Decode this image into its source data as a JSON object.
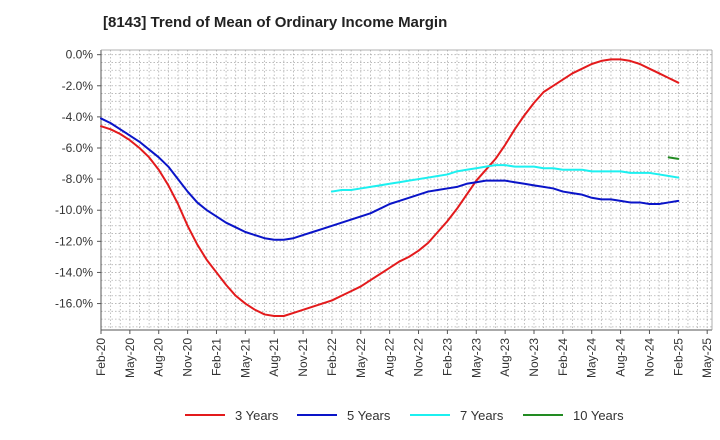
{
  "title": "[8143]  Trend of Mean of Ordinary Income Margin",
  "chart_data": {
    "type": "line",
    "title": "[8143]  Trend of Mean of Ordinary Income Margin",
    "xlabel": "",
    "ylabel": "",
    "ylim": [
      -17.7,
      0.3
    ],
    "y_ticks": [
      0,
      -2,
      -4,
      -6,
      -8,
      -10,
      -12,
      -14,
      -16
    ],
    "y_tick_labels": [
      "0.0%",
      "-2.0%",
      "-4.0%",
      "-6.0%",
      "-8.0%",
      "-10.0%",
      "-12.0%",
      "-14.0%",
      "-16.0%"
    ],
    "x_ticks": [
      "2020-02",
      "2020-05",
      "2020-08",
      "2020-11",
      "2021-02",
      "2021-05",
      "2021-08",
      "2021-11",
      "2022-02",
      "2022-05",
      "2022-08",
      "2022-11",
      "2023-02",
      "2023-05",
      "2023-08",
      "2023-11",
      "2024-02",
      "2024-05",
      "2024-08",
      "2024-11",
      "2025-02",
      "2025-05"
    ],
    "x_tick_labels": [
      "Feb-20",
      "May-20",
      "Aug-20",
      "Nov-20",
      "Feb-21",
      "May-21",
      "Aug-21",
      "Nov-21",
      "Feb-22",
      "May-22",
      "Aug-22",
      "Nov-22",
      "Feb-23",
      "May-23",
      "Aug-23",
      "Nov-23",
      "Feb-24",
      "May-24",
      "Aug-24",
      "Nov-24",
      "Feb-25",
      "May-25"
    ],
    "grid": true,
    "legend_position": "bottom",
    "series": [
      {
        "name": "3 Years",
        "color": "#e31a1c",
        "points": [
          [
            "2020-02",
            -4.6
          ],
          [
            "2020-03",
            -4.8
          ],
          [
            "2020-04",
            -5.1
          ],
          [
            "2020-05",
            -5.5
          ],
          [
            "2020-06",
            -6.0
          ],
          [
            "2020-07",
            -6.6
          ],
          [
            "2020-08",
            -7.4
          ],
          [
            "2020-09",
            -8.4
          ],
          [
            "2020-10",
            -9.6
          ],
          [
            "2020-11",
            -11.0
          ],
          [
            "2020-12",
            -12.2
          ],
          [
            "2021-01",
            -13.2
          ],
          [
            "2021-02",
            -14.0
          ],
          [
            "2021-03",
            -14.8
          ],
          [
            "2021-04",
            -15.5
          ],
          [
            "2021-05",
            -16.0
          ],
          [
            "2021-06",
            -16.4
          ],
          [
            "2021-07",
            -16.7
          ],
          [
            "2021-08",
            -16.8
          ],
          [
            "2021-09",
            -16.8
          ],
          [
            "2021-10",
            -16.6
          ],
          [
            "2021-11",
            -16.4
          ],
          [
            "2021-12",
            -16.2
          ],
          [
            "2022-01",
            -16.0
          ],
          [
            "2022-02",
            -15.8
          ],
          [
            "2022-03",
            -15.5
          ],
          [
            "2022-04",
            -15.2
          ],
          [
            "2022-05",
            -14.9
          ],
          [
            "2022-06",
            -14.5
          ],
          [
            "2022-07",
            -14.1
          ],
          [
            "2022-08",
            -13.7
          ],
          [
            "2022-09",
            -13.3
          ],
          [
            "2022-10",
            -13.0
          ],
          [
            "2022-11",
            -12.6
          ],
          [
            "2022-12",
            -12.1
          ],
          [
            "2023-01",
            -11.4
          ],
          [
            "2023-02",
            -10.7
          ],
          [
            "2023-03",
            -9.9
          ],
          [
            "2023-04",
            -9.0
          ],
          [
            "2023-05",
            -8.1
          ],
          [
            "2023-06",
            -7.4
          ],
          [
            "2023-07",
            -6.7
          ],
          [
            "2023-08",
            -5.8
          ],
          [
            "2023-09",
            -4.8
          ],
          [
            "2023-10",
            -3.9
          ],
          [
            "2023-11",
            -3.1
          ],
          [
            "2023-12",
            -2.4
          ],
          [
            "2024-01",
            -2.0
          ],
          [
            "2024-02",
            -1.6
          ],
          [
            "2024-03",
            -1.2
          ],
          [
            "2024-04",
            -0.9
          ],
          [
            "2024-05",
            -0.6
          ],
          [
            "2024-06",
            -0.4
          ],
          [
            "2024-07",
            -0.3
          ],
          [
            "2024-08",
            -0.3
          ],
          [
            "2024-09",
            -0.4
          ],
          [
            "2024-10",
            -0.6
          ],
          [
            "2024-11",
            -0.9
          ],
          [
            "2024-12",
            -1.2
          ],
          [
            "2025-01",
            -1.5
          ],
          [
            "2025-02",
            -1.8
          ]
        ]
      },
      {
        "name": "5 Years",
        "color": "#0a14c8",
        "points": [
          [
            "2020-02",
            -4.1
          ],
          [
            "2020-03",
            -4.4
          ],
          [
            "2020-04",
            -4.8
          ],
          [
            "2020-05",
            -5.2
          ],
          [
            "2020-06",
            -5.6
          ],
          [
            "2020-07",
            -6.1
          ],
          [
            "2020-08",
            -6.6
          ],
          [
            "2020-09",
            -7.2
          ],
          [
            "2020-10",
            -8.0
          ],
          [
            "2020-11",
            -8.8
          ],
          [
            "2020-12",
            -9.5
          ],
          [
            "2021-01",
            -10.0
          ],
          [
            "2021-02",
            -10.4
          ],
          [
            "2021-03",
            -10.8
          ],
          [
            "2021-04",
            -11.1
          ],
          [
            "2021-05",
            -11.4
          ],
          [
            "2021-06",
            -11.6
          ],
          [
            "2021-07",
            -11.8
          ],
          [
            "2021-08",
            -11.9
          ],
          [
            "2021-09",
            -11.9
          ],
          [
            "2021-10",
            -11.8
          ],
          [
            "2021-11",
            -11.6
          ],
          [
            "2021-12",
            -11.4
          ],
          [
            "2022-01",
            -11.2
          ],
          [
            "2022-02",
            -11.0
          ],
          [
            "2022-03",
            -10.8
          ],
          [
            "2022-04",
            -10.6
          ],
          [
            "2022-05",
            -10.4
          ],
          [
            "2022-06",
            -10.2
          ],
          [
            "2022-07",
            -9.9
          ],
          [
            "2022-08",
            -9.6
          ],
          [
            "2022-09",
            -9.4
          ],
          [
            "2022-10",
            -9.2
          ],
          [
            "2022-11",
            -9.0
          ],
          [
            "2022-12",
            -8.8
          ],
          [
            "2023-01",
            -8.7
          ],
          [
            "2023-02",
            -8.6
          ],
          [
            "2023-03",
            -8.5
          ],
          [
            "2023-04",
            -8.3
          ],
          [
            "2023-05",
            -8.2
          ],
          [
            "2023-06",
            -8.1
          ],
          [
            "2023-07",
            -8.1
          ],
          [
            "2023-08",
            -8.1
          ],
          [
            "2023-09",
            -8.2
          ],
          [
            "2023-10",
            -8.3
          ],
          [
            "2023-11",
            -8.4
          ],
          [
            "2023-12",
            -8.5
          ],
          [
            "2024-01",
            -8.6
          ],
          [
            "2024-02",
            -8.8
          ],
          [
            "2024-03",
            -8.9
          ],
          [
            "2024-04",
            -9.0
          ],
          [
            "2024-05",
            -9.2
          ],
          [
            "2024-06",
            -9.3
          ],
          [
            "2024-07",
            -9.3
          ],
          [
            "2024-08",
            -9.4
          ],
          [
            "2024-09",
            -9.5
          ],
          [
            "2024-10",
            -9.5
          ],
          [
            "2024-11",
            -9.6
          ],
          [
            "2024-12",
            -9.6
          ],
          [
            "2025-01",
            -9.5
          ],
          [
            "2025-02",
            -9.4
          ]
        ]
      },
      {
        "name": "7 Years",
        "color": "#1cf0f0",
        "points": [
          [
            "2022-02",
            -8.8
          ],
          [
            "2022-03",
            -8.7
          ],
          [
            "2022-04",
            -8.7
          ],
          [
            "2022-05",
            -8.6
          ],
          [
            "2022-06",
            -8.5
          ],
          [
            "2022-07",
            -8.4
          ],
          [
            "2022-08",
            -8.3
          ],
          [
            "2022-09",
            -8.2
          ],
          [
            "2022-10",
            -8.1
          ],
          [
            "2022-11",
            -8.0
          ],
          [
            "2022-12",
            -7.9
          ],
          [
            "2023-01",
            -7.8
          ],
          [
            "2023-02",
            -7.7
          ],
          [
            "2023-03",
            -7.5
          ],
          [
            "2023-04",
            -7.4
          ],
          [
            "2023-05",
            -7.3
          ],
          [
            "2023-06",
            -7.2
          ],
          [
            "2023-07",
            -7.1
          ],
          [
            "2023-08",
            -7.1
          ],
          [
            "2023-09",
            -7.2
          ],
          [
            "2023-10",
            -7.2
          ],
          [
            "2023-11",
            -7.2
          ],
          [
            "2023-12",
            -7.3
          ],
          [
            "2024-01",
            -7.3
          ],
          [
            "2024-02",
            -7.4
          ],
          [
            "2024-03",
            -7.4
          ],
          [
            "2024-04",
            -7.4
          ],
          [
            "2024-05",
            -7.5
          ],
          [
            "2024-06",
            -7.5
          ],
          [
            "2024-07",
            -7.5
          ],
          [
            "2024-08",
            -7.5
          ],
          [
            "2024-09",
            -7.6
          ],
          [
            "2024-10",
            -7.6
          ],
          [
            "2024-11",
            -7.6
          ],
          [
            "2024-12",
            -7.7
          ],
          [
            "2025-01",
            -7.8
          ],
          [
            "2025-02",
            -7.9
          ]
        ]
      },
      {
        "name": "10 Years",
        "color": "#228b22",
        "points": [
          [
            "2025-01",
            -6.6
          ],
          [
            "2025-02",
            -6.7
          ]
        ]
      }
    ]
  }
}
